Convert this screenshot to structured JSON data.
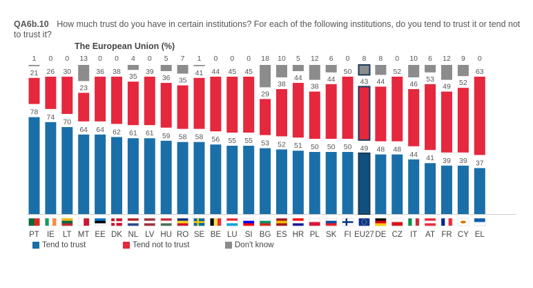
{
  "question_id": "QA6b.10",
  "question_text": "How much trust do you have in certain institutions? For each of the following institutions, do you tend to trust it or tend not to trust it?",
  "subtitle": "The European Union  (%)",
  "colors": {
    "trust": "#1B6FA8",
    "trust_dark": "#10507e",
    "not_trust": "#E5283D",
    "not_trust_dark": "#b51b2d",
    "dont_know": "#8C8C8C",
    "dont_know_dark": "#6e6e6e",
    "eu27_outline": "#1a3a5a"
  },
  "chart_data": {
    "type": "bar",
    "stacked": true,
    "title": "The European Union (%)",
    "categories": [
      "PT",
      "IE",
      "LT",
      "MT",
      "EE",
      "DK",
      "NL",
      "LV",
      "HU",
      "RO",
      "SE",
      "BE",
      "LU",
      "SI",
      "BG",
      "ES",
      "HR",
      "PL",
      "SK",
      "FI",
      "EU27",
      "DE",
      "CZ",
      "IT",
      "AT",
      "FR",
      "CY",
      "EL"
    ],
    "highlight": "EU27",
    "ylim": [
      0,
      100
    ],
    "series": [
      {
        "name": "Tend to trust",
        "color_key": "trust",
        "values": [
          78,
          74,
          70,
          64,
          64,
          62,
          61,
          61,
          59,
          58,
          58,
          56,
          55,
          55,
          53,
          52,
          51,
          50,
          50,
          50,
          49,
          48,
          48,
          44,
          41,
          39,
          39,
          37
        ]
      },
      {
        "name": "Tend not to trust",
        "color_key": "not_trust",
        "values": [
          21,
          26,
          30,
          23,
          36,
          38,
          35,
          39,
          36,
          35,
          41,
          44,
          45,
          45,
          29,
          38,
          44,
          38,
          44,
          50,
          43,
          44,
          52,
          46,
          53,
          49,
          52,
          63
        ]
      },
      {
        "name": "Don't know",
        "color_key": "dont_know",
        "values": [
          1,
          0,
          0,
          13,
          0,
          0,
          4,
          0,
          5,
          7,
          1,
          0,
          0,
          0,
          18,
          10,
          5,
          12,
          6,
          0,
          8,
          8,
          0,
          10,
          6,
          12,
          9,
          0
        ]
      }
    ],
    "legend": [
      "Tend to trust",
      "Tend not to trust",
      "Don't know"
    ],
    "legend_position": "bottom-left"
  }
}
